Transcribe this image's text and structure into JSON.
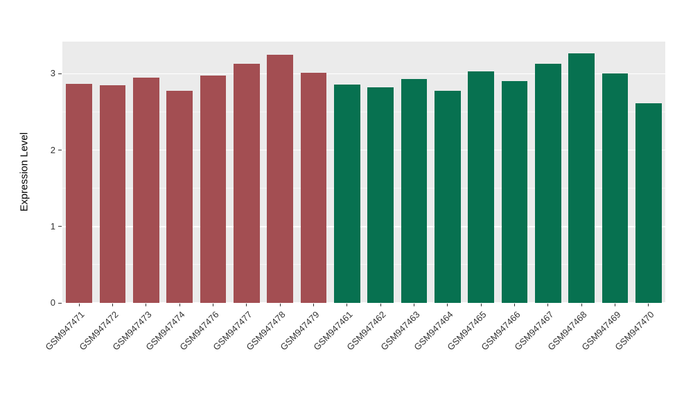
{
  "chart_data": {
    "type": "bar",
    "title": "",
    "xlabel": "",
    "ylabel": "Expression Level",
    "ylim": [
      0,
      3.42
    ],
    "yticks": [
      0,
      1,
      2,
      3
    ],
    "minor_gridlines": [
      0.5,
      1.5,
      2.5
    ],
    "legend": "none",
    "grid": "on",
    "panel_background": "#EBEBEB",
    "categories": [
      "GSM947471",
      "GSM947472",
      "GSM947473",
      "GSM947474",
      "GSM947476",
      "GSM947477",
      "GSM947478",
      "GSM947479",
      "GSM947461",
      "GSM947462",
      "GSM947463",
      "GSM947464",
      "GSM947465",
      "GSM947466",
      "GSM947467",
      "GSM947468",
      "GSM947469",
      "GSM947470"
    ],
    "values": [
      2.87,
      2.85,
      2.95,
      2.78,
      2.98,
      3.13,
      3.25,
      3.01,
      2.86,
      2.82,
      2.93,
      2.78,
      3.03,
      2.9,
      3.13,
      3.27,
      3.0,
      2.61
    ],
    "groups": [
      "a",
      "a",
      "a",
      "a",
      "a",
      "a",
      "a",
      "a",
      "b",
      "b",
      "b",
      "b",
      "b",
      "b",
      "b",
      "b",
      "b",
      "b"
    ],
    "group_colors": {
      "a": "#A34E52",
      "b": "#077150"
    }
  }
}
